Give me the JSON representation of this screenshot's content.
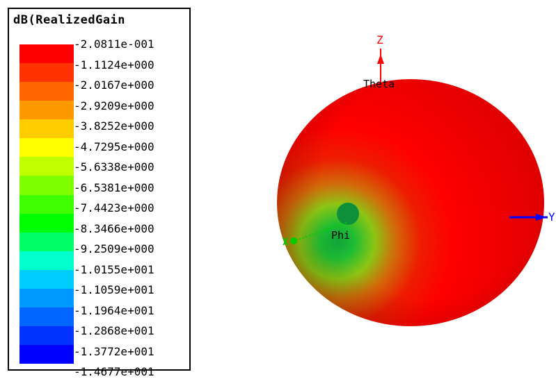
{
  "legend": {
    "title": "dB(RealizedGain",
    "values": [
      "-2.0811e-001",
      "-1.1124e+000",
      "-2.0167e+000",
      "-2.9209e+000",
      "-3.8252e+000",
      "-4.7295e+000",
      "-5.6338e+000",
      "-6.5381e+000",
      "-7.4423e+000",
      "-8.3466e+000",
      "-9.2509e+000",
      "-1.0155e+001",
      "-1.1059e+001",
      "-1.1964e+001",
      "-1.2868e+001",
      "-1.3772e+001",
      "-1.4677e+001"
    ],
    "colors": [
      "#ff0000",
      "#ff3300",
      "#ff6600",
      "#ff9900",
      "#ffcc00",
      "#ffff00",
      "#bfff00",
      "#80ff00",
      "#40ff00",
      "#00ff00",
      "#00ff66",
      "#00ffcc",
      "#00ccff",
      "#0099ff",
      "#0066ff",
      "#0033ff",
      "#0000ff"
    ]
  },
  "plot": {
    "axis_z_label": "Z",
    "axis_y_label": "Y",
    "axis_x_label": "X",
    "theta_label": "Theta",
    "phi_label": "Phi",
    "colors": {
      "z_axis": "#ff0000",
      "y_axis": "#0000ff",
      "x_axis": "#00cc00",
      "pattern_max": "#ff0000",
      "pattern_min": "#00bb33"
    }
  }
}
